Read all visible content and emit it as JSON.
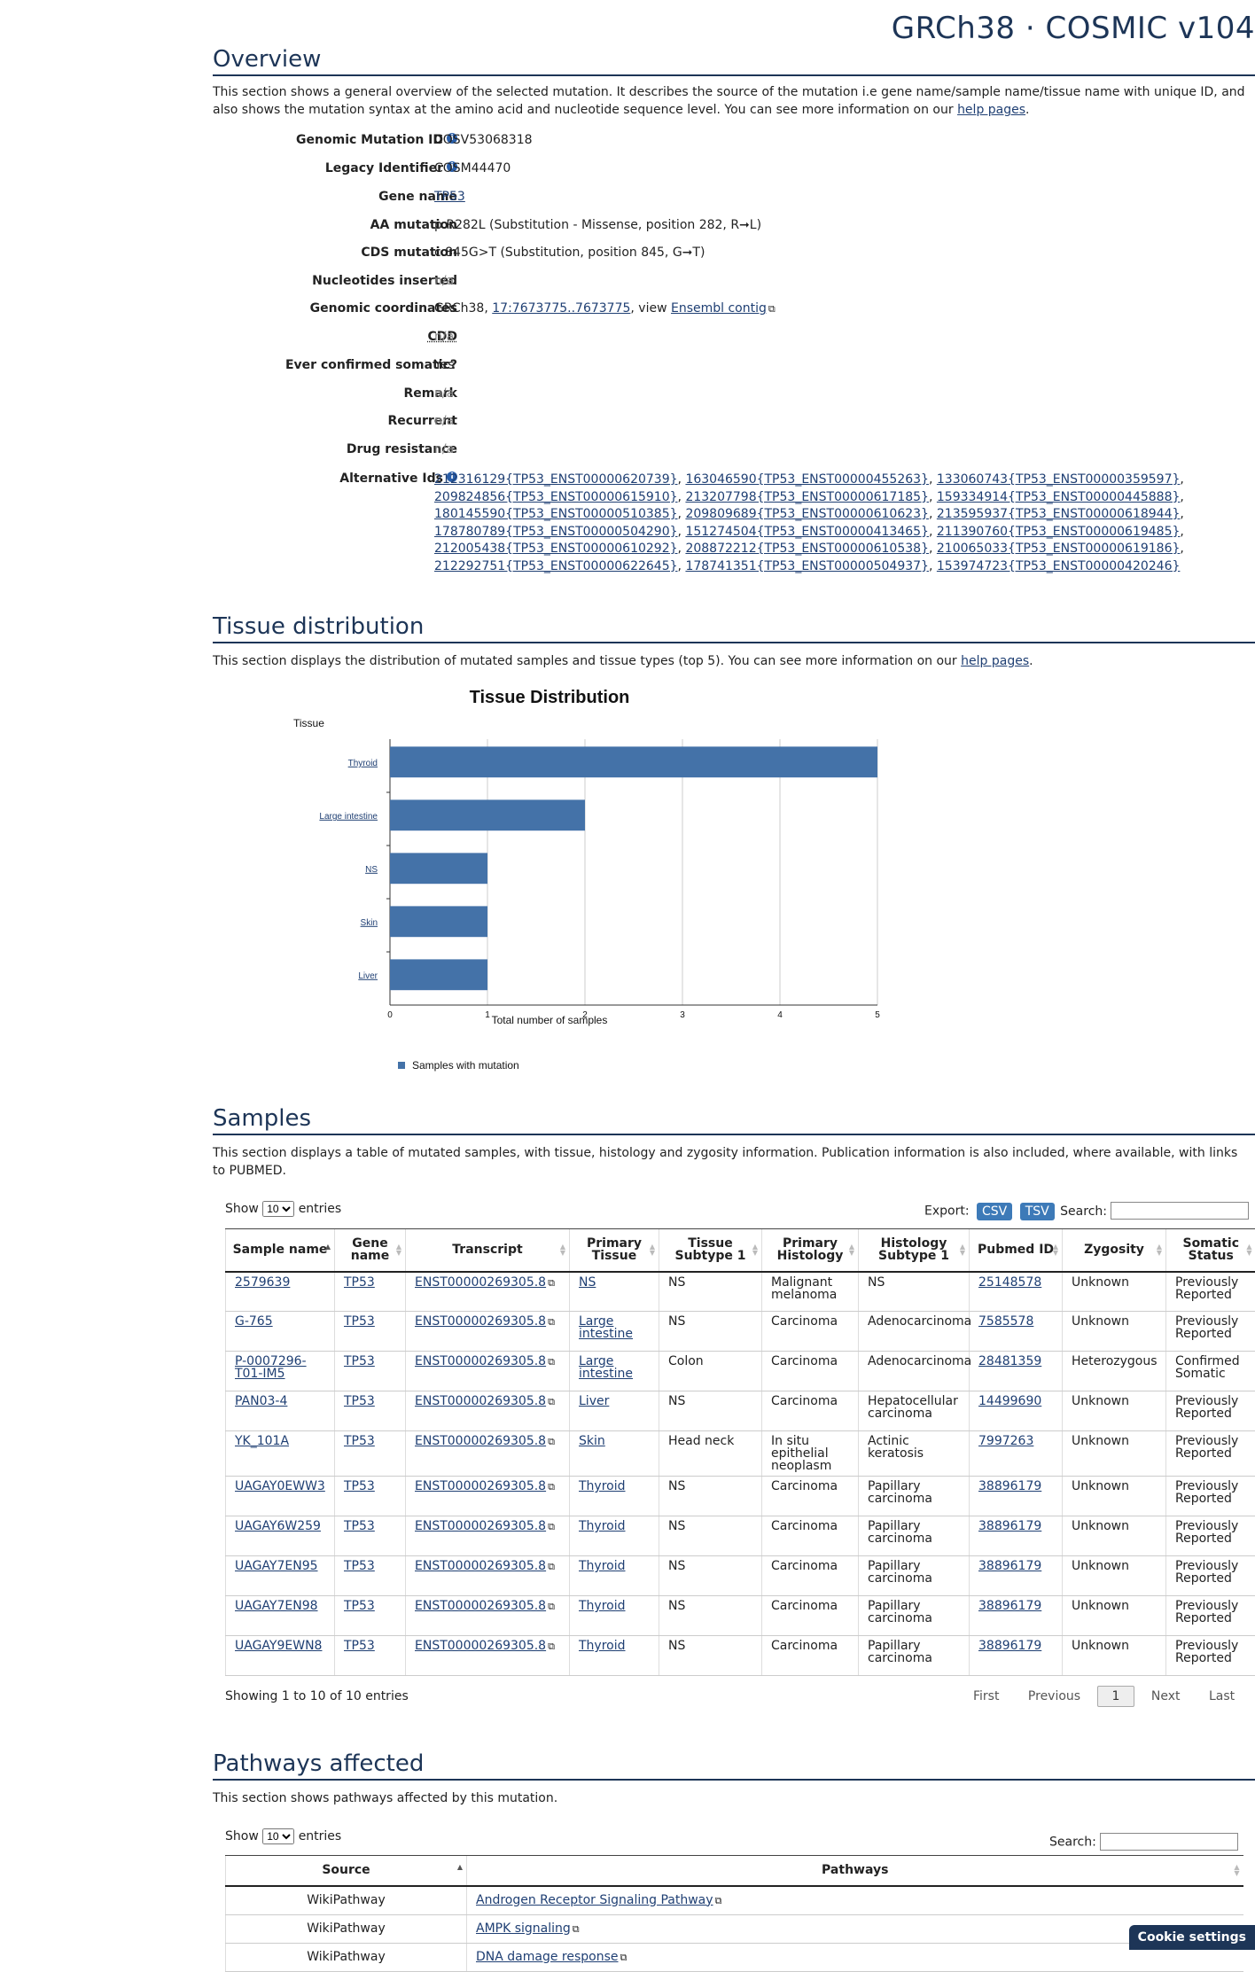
{
  "header": {
    "version": "GRCh38 · COSMIC v104"
  },
  "overview": {
    "title": "Overview",
    "desc1": "This section shows a general overview of the selected mutation. It describes the source of the mutation i.e gene name/sample name/tissue name with unique ID, and",
    "desc2": "also shows the mutation syntax at the amino acid and nucleotide sequence level. You can see more information on our ",
    "help_link": "help pages",
    "rows": {
      "gmid_label": "Genomic Mutation ID",
      "gmid": "COSV53068318",
      "legacy_label": "Legacy Identifier",
      "legacy": "COSM44470",
      "gene_label": "Gene name",
      "gene": "TP53",
      "aa_label": "AA mutation",
      "aa": "p.R282L (Substitution - Missense, position 282, R➞L)",
      "cds_label": "CDS mutation",
      "cds": "c.845G>T (Substitution, position 845, G➞T)",
      "nuc_label": "Nucleotides inserted",
      "nuc": "n/a",
      "coord_label": "Genomic coordinates",
      "coord_prefix": "GRCh38, ",
      "coord_link": "17:7673775..7673775",
      "coord_mid": ", view ",
      "coord_ens": "Ensembl contig",
      "cdd_label": "CDD",
      "cdd": "n/a",
      "somatic_label": "Ever confirmed somatic?",
      "somatic": "Yes",
      "remark_label": "Remark",
      "remark": "n/a",
      "recurrent_label": "Recurrent",
      "recurrent": "n/a",
      "drug_label": "Drug resistance",
      "drug": "n/a",
      "alt_label": "Alternative Ids"
    },
    "alt_ids": [
      [
        "212316129{TP53_ENST00000620739}",
        "163046590{TP53_ENST00000455263}",
        "133060743{TP53_ENST00000359597}"
      ],
      [
        "209824856{TP53_ENST00000615910}",
        "213207798{TP53_ENST00000617185}",
        "159334914{TP53_ENST00000445888}"
      ],
      [
        "180145590{TP53_ENST00000510385}",
        "209809689{TP53_ENST00000610623}",
        "213595937{TP53_ENST00000618944}"
      ],
      [
        "178780789{TP53_ENST00000504290}",
        "151274504{TP53_ENST00000413465}",
        "211390760{TP53_ENST00000619485}"
      ],
      [
        "212005438{TP53_ENST00000610292}",
        "208872212{TP53_ENST00000610538}",
        "210065033{TP53_ENST00000619186}"
      ],
      [
        "212292751{TP53_ENST00000622645}",
        "178741351{TP53_ENST00000504937}",
        "153974723{TP53_ENST00000420246}"
      ]
    ]
  },
  "tissue": {
    "title": "Tissue distribution",
    "desc": "This section displays the distribution of mutated samples and tissue types (top 5). You can see more information on our ",
    "help_link": "help pages"
  },
  "chart_data": {
    "type": "bar",
    "orientation": "horizontal",
    "title": "Tissue Distribution",
    "ylabel": "Tissue",
    "xlabel": "Total number of samples",
    "categories": [
      "Thyroid",
      "Large intestine",
      "NS",
      "Skin",
      "Liver"
    ],
    "series": [
      {
        "name": "Samples with mutation",
        "values": [
          5,
          2,
          1,
          1,
          1
        ]
      }
    ],
    "xlim": [
      0,
      5
    ],
    "xticks": [
      "0",
      "1",
      "2",
      "3",
      "4",
      "5"
    ],
    "grid": true,
    "legend": "bottom-left",
    "bar_color": "#4472a8"
  },
  "samples": {
    "title": "Samples",
    "desc1": "This section displays a table of mutated samples, with tissue, histology and zygosity information. Publication information is also included, where available, with links",
    "desc2": "to PUBMED.",
    "show": "Show",
    "entries": "entries",
    "len_value": "10",
    "export": "Export:",
    "csv": "CSV",
    "tsv": "TSV",
    "search": "Search:",
    "headers": [
      "Sample name",
      "Gene name",
      "Transcript",
      "Primary Tissue",
      "Tissue Subtype 1",
      "Primary Histology",
      "Histology Subtype 1",
      "Pubmed ID",
      "Zygosity",
      "Somatic Status"
    ],
    "rows": [
      [
        "2579639",
        "TP53",
        "ENST00000269305.8",
        "NS",
        "NS",
        "Malignant melanoma",
        "NS",
        "25148578",
        "Unknown",
        "Previously Reported"
      ],
      [
        "G-765",
        "TP53",
        "ENST00000269305.8",
        "Large intestine",
        "NS",
        "Carcinoma",
        "Adenocarcinoma",
        "7585578",
        "Unknown",
        "Previously Reported"
      ],
      [
        "P-0007296-T01-IM5",
        "TP53",
        "ENST00000269305.8",
        "Large intestine",
        "Colon",
        "Carcinoma",
        "Adenocarcinoma",
        "28481359",
        "Heterozygous",
        "Confirmed Somatic"
      ],
      [
        "PAN03-4",
        "TP53",
        "ENST00000269305.8",
        "Liver",
        "NS",
        "Carcinoma",
        "Hepatocellular carcinoma",
        "14499690",
        "Unknown",
        "Previously Reported"
      ],
      [
        "YK_101A",
        "TP53",
        "ENST00000269305.8",
        "Skin",
        "Head neck",
        "In situ epithelial neoplasm",
        "Actinic keratosis",
        "7997263",
        "Unknown",
        "Previously Reported"
      ],
      [
        "UAGAY0EWW3",
        "TP53",
        "ENST00000269305.8",
        "Thyroid",
        "NS",
        "Carcinoma",
        "Papillary carcinoma",
        "38896179",
        "Unknown",
        "Previously Reported"
      ],
      [
        "UAGAY6W259",
        "TP53",
        "ENST00000269305.8",
        "Thyroid",
        "NS",
        "Carcinoma",
        "Papillary carcinoma",
        "38896179",
        "Unknown",
        "Previously Reported"
      ],
      [
        "UAGAY7EN95",
        "TP53",
        "ENST00000269305.8",
        "Thyroid",
        "NS",
        "Carcinoma",
        "Papillary carcinoma",
        "38896179",
        "Unknown",
        "Previously Reported"
      ],
      [
        "UAGAY7EN98",
        "TP53",
        "ENST00000269305.8",
        "Thyroid",
        "NS",
        "Carcinoma",
        "Papillary carcinoma",
        "38896179",
        "Unknown",
        "Previously Reported"
      ],
      [
        "UAGAY9EWN8",
        "TP53",
        "ENST00000269305.8",
        "Thyroid",
        "NS",
        "Carcinoma",
        "Papillary carcinoma",
        "38896179",
        "Unknown",
        "Previously Reported"
      ]
    ],
    "info": "Showing 1 to 10 of 10 entries",
    "first": "First",
    "previous": "Previous",
    "page": "1",
    "next": "Next",
    "last": "Last"
  },
  "pathways": {
    "title": "Pathways affected",
    "desc": "This section shows pathways affected by this mutation.",
    "show": "Show",
    "entries": "entries",
    "len_value": "10",
    "search": "Search:",
    "headers": [
      "Source",
      "Pathways"
    ],
    "rows": [
      [
        "WikiPathway",
        "Androgen Receptor Signaling Pathway"
      ],
      [
        "WikiPathway",
        "AMPK signaling"
      ],
      [
        "WikiPathway",
        "DNA damage response"
      ]
    ]
  },
  "cookie": "Cookie settings"
}
